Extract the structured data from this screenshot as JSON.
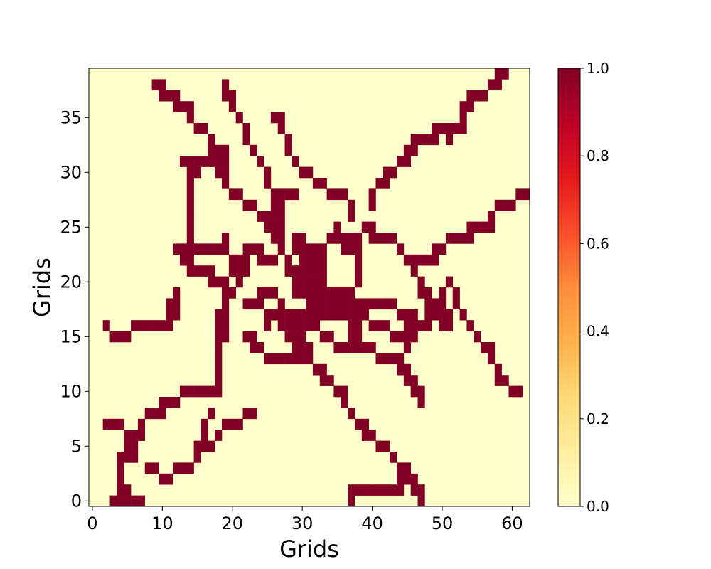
{
  "chart_data": {
    "type": "heatmap",
    "xlabel": "Grids",
    "ylabel": "Grids",
    "xlim": [
      -0.5,
      62.5
    ],
    "ylim": [
      -0.5,
      39.5
    ],
    "xticks": [
      "0",
      "10",
      "20",
      "30",
      "40",
      "50",
      "60"
    ],
    "yticks": [
      "0",
      "5",
      "10",
      "15",
      "20",
      "25",
      "30",
      "35"
    ],
    "colormap": "YlOrRd",
    "colorbar": {
      "min": 0.0,
      "max": 1.0,
      "ticks": [
        "0.0",
        "0.2",
        "0.4",
        "0.6",
        "0.8",
        "1.0"
      ]
    },
    "colors": {
      "low": "#ffffcc",
      "high": "#800026"
    },
    "cell_value_default": 0,
    "cell_value_marked": 1,
    "cells_value_1": [
      [
        3,
        0
      ],
      [
        4,
        0
      ],
      [
        5,
        0
      ],
      [
        6,
        0
      ],
      [
        7,
        0
      ],
      [
        4,
        1
      ],
      [
        5,
        1
      ],
      [
        4,
        2
      ],
      [
        4,
        3
      ],
      [
        4,
        4
      ],
      [
        5,
        4
      ],
      [
        6,
        4
      ],
      [
        5,
        5
      ],
      [
        6,
        5
      ],
      [
        5,
        6
      ],
      [
        6,
        6
      ],
      [
        7,
        6
      ],
      [
        2,
        7
      ],
      [
        3,
        7
      ],
      [
        4,
        7
      ],
      [
        7,
        7
      ],
      [
        8,
        3
      ],
      [
        9,
        3
      ],
      [
        10,
        2
      ],
      [
        11,
        2
      ],
      [
        12,
        3
      ],
      [
        13,
        3
      ],
      [
        14,
        3
      ],
      [
        15,
        4
      ],
      [
        15,
        5
      ],
      [
        16,
        5
      ],
      [
        17,
        5
      ],
      [
        16,
        6
      ],
      [
        16,
        7
      ],
      [
        17,
        8
      ],
      [
        18,
        6
      ],
      [
        19,
        7
      ],
      [
        20,
        7
      ],
      [
        21,
        7
      ],
      [
        22,
        8
      ],
      [
        23,
        8
      ],
      [
        8,
        8
      ],
      [
        9,
        8
      ],
      [
        10,
        8
      ],
      [
        10,
        9
      ],
      [
        11,
        9
      ],
      [
        12,
        9
      ],
      [
        13,
        10
      ],
      [
        14,
        10
      ],
      [
        15,
        10
      ],
      [
        16,
        10
      ],
      [
        17,
        10
      ],
      [
        18,
        10
      ],
      [
        18,
        11
      ],
      [
        18,
        12
      ],
      [
        18,
        13
      ],
      [
        18,
        14
      ],
      [
        18,
        15
      ],
      [
        18,
        16
      ],
      [
        18,
        17
      ],
      [
        19,
        15
      ],
      [
        19,
        16
      ],
      [
        19,
        17
      ],
      [
        19,
        18
      ],
      [
        2,
        16
      ],
      [
        3,
        15
      ],
      [
        4,
        15
      ],
      [
        5,
        15
      ],
      [
        6,
        16
      ],
      [
        7,
        16
      ],
      [
        8,
        16
      ],
      [
        9,
        16
      ],
      [
        10,
        16
      ],
      [
        11,
        16
      ],
      [
        11,
        17
      ],
      [
        11,
        18
      ],
      [
        12,
        17
      ],
      [
        12,
        18
      ],
      [
        12,
        19
      ],
      [
        12,
        23
      ],
      [
        13,
        23
      ],
      [
        13,
        22
      ],
      [
        14,
        22
      ],
      [
        14,
        21
      ],
      [
        15,
        21
      ],
      [
        16,
        21
      ],
      [
        17,
        20
      ],
      [
        17,
        21
      ],
      [
        18,
        20
      ],
      [
        19,
        20
      ],
      [
        19,
        19
      ],
      [
        20,
        19
      ],
      [
        20,
        21
      ],
      [
        20,
        22
      ],
      [
        21,
        21
      ],
      [
        21,
        22
      ],
      [
        21,
        20
      ],
      [
        22,
        21
      ],
      [
        22,
        22
      ],
      [
        22,
        23
      ],
      [
        23,
        23
      ],
      [
        24,
        23
      ],
      [
        24,
        22
      ],
      [
        25,
        22
      ],
      [
        26,
        22
      ],
      [
        14,
        23
      ],
      [
        15,
        23
      ],
      [
        16,
        23
      ],
      [
        17,
        23
      ],
      [
        18,
        23
      ],
      [
        19,
        23
      ],
      [
        19,
        24
      ],
      [
        14,
        24
      ],
      [
        14,
        25
      ],
      [
        14,
        26
      ],
      [
        14,
        27
      ],
      [
        14,
        28
      ],
      [
        14,
        29
      ],
      [
        14,
        30
      ],
      [
        13,
        31
      ],
      [
        14,
        31
      ],
      [
        15,
        30
      ],
      [
        15,
        31
      ],
      [
        16,
        31
      ],
      [
        17,
        31
      ],
      [
        18,
        31
      ],
      [
        18,
        30
      ],
      [
        19,
        30
      ],
      [
        19,
        31
      ],
      [
        19,
        29
      ],
      [
        20,
        28
      ],
      [
        21,
        28
      ],
      [
        22,
        27
      ],
      [
        23,
        27
      ],
      [
        9,
        38
      ],
      [
        10,
        38
      ],
      [
        10,
        37
      ],
      [
        11,
        37
      ],
      [
        12,
        37
      ],
      [
        12,
        36
      ],
      [
        13,
        36
      ],
      [
        14,
        36
      ],
      [
        14,
        35
      ],
      [
        15,
        34
      ],
      [
        16,
        34
      ],
      [
        17,
        33
      ],
      [
        17,
        32
      ],
      [
        18,
        32
      ],
      [
        19,
        32
      ],
      [
        19,
        38
      ],
      [
        19,
        37
      ],
      [
        20,
        37
      ],
      [
        20,
        36
      ],
      [
        21,
        35
      ],
      [
        22,
        34
      ],
      [
        22,
        33
      ],
      [
        23,
        32
      ],
      [
        24,
        31
      ],
      [
        25,
        30
      ],
      [
        25,
        29
      ],
      [
        26,
        28
      ],
      [
        27,
        28
      ],
      [
        28,
        28
      ],
      [
        29,
        28
      ],
      [
        26,
        27
      ],
      [
        27,
        27
      ],
      [
        24,
        26
      ],
      [
        25,
        26
      ],
      [
        26,
        26
      ],
      [
        27,
        26
      ],
      [
        25,
        25
      ],
      [
        26,
        25
      ],
      [
        27,
        25
      ],
      [
        26,
        24
      ],
      [
        27,
        24
      ],
      [
        27,
        23
      ],
      [
        26,
        35
      ],
      [
        27,
        35
      ],
      [
        27,
        34
      ],
      [
        28,
        33
      ],
      [
        28,
        32
      ],
      [
        29,
        31
      ],
      [
        30,
        30
      ],
      [
        31,
        30
      ],
      [
        32,
        29
      ],
      [
        33,
        29
      ],
      [
        34,
        28
      ],
      [
        35,
        28
      ],
      [
        36,
        28
      ],
      [
        37,
        27
      ],
      [
        37,
        26
      ],
      [
        29,
        24
      ],
      [
        30,
        24
      ],
      [
        30,
        23
      ],
      [
        29,
        23
      ],
      [
        28,
        22
      ],
      [
        28,
        21
      ],
      [
        29,
        21
      ],
      [
        30,
        21
      ],
      [
        31,
        21
      ],
      [
        32,
        21
      ],
      [
        33,
        21
      ],
      [
        30,
        22
      ],
      [
        31,
        22
      ],
      [
        32,
        22
      ],
      [
        33,
        22
      ],
      [
        31,
        23
      ],
      [
        32,
        23
      ],
      [
        33,
        23
      ],
      [
        29,
        20
      ],
      [
        30,
        20
      ],
      [
        31,
        20
      ],
      [
        32,
        20
      ],
      [
        33,
        20
      ],
      [
        31,
        19
      ],
      [
        32,
        19
      ],
      [
        33,
        19
      ],
      [
        34,
        19
      ],
      [
        30,
        19
      ],
      [
        29,
        19
      ],
      [
        31,
        18
      ],
      [
        32,
        18
      ],
      [
        33,
        18
      ],
      [
        34,
        18
      ],
      [
        35,
        18
      ],
      [
        31,
        17
      ],
      [
        32,
        17
      ],
      [
        33,
        17
      ],
      [
        34,
        17
      ],
      [
        35,
        17
      ],
      [
        36,
        17
      ],
      [
        37,
        17
      ],
      [
        36,
        18
      ],
      [
        37,
        18
      ],
      [
        38,
        18
      ],
      [
        35,
        19
      ],
      [
        36,
        19
      ],
      [
        37,
        19
      ],
      [
        38,
        20
      ],
      [
        38,
        21
      ],
      [
        38,
        22
      ],
      [
        37,
        23
      ],
      [
        36,
        23
      ],
      [
        35,
        24
      ],
      [
        34,
        24
      ],
      [
        35,
        25
      ],
      [
        36,
        24
      ],
      [
        37,
        24
      ],
      [
        38,
        24
      ],
      [
        38,
        23
      ],
      [
        39,
        25
      ],
      [
        40,
        25
      ],
      [
        40,
        24
      ],
      [
        41,
        24
      ],
      [
        42,
        24
      ],
      [
        43,
        24
      ],
      [
        44,
        23
      ],
      [
        45,
        22
      ],
      [
        46,
        22
      ],
      [
        46,
        21
      ],
      [
        47,
        20
      ],
      [
        47,
        19
      ],
      [
        48,
        19
      ],
      [
        48,
        18
      ],
      [
        39,
        18
      ],
      [
        40,
        18
      ],
      [
        41,
        18
      ],
      [
        42,
        18
      ],
      [
        43,
        18
      ],
      [
        44,
        17
      ],
      [
        45,
        17
      ],
      [
        46,
        17
      ],
      [
        46,
        16
      ],
      [
        46,
        15
      ],
      [
        45,
        14
      ],
      [
        44,
        13
      ],
      [
        43,
        13
      ],
      [
        42,
        13
      ],
      [
        41,
        13
      ],
      [
        40,
        14
      ],
      [
        39,
        14
      ],
      [
        38,
        14
      ],
      [
        37,
        14
      ],
      [
        36,
        14
      ],
      [
        35,
        14
      ],
      [
        34,
        15
      ],
      [
        33,
        15
      ],
      [
        32,
        16
      ],
      [
        31,
        16
      ],
      [
        30,
        16
      ],
      [
        29,
        16
      ],
      [
        28,
        16
      ],
      [
        27,
        16
      ],
      [
        25,
        16
      ],
      [
        25,
        17
      ],
      [
        26,
        17
      ],
      [
        27,
        17
      ],
      [
        28,
        17
      ],
      [
        29,
        17
      ],
      [
        30,
        17
      ],
      [
        27,
        18
      ],
      [
        26,
        19
      ],
      [
        25,
        19
      ],
      [
        24,
        19
      ],
      [
        24,
        18
      ],
      [
        23,
        18
      ],
      [
        22,
        18
      ],
      [
        28,
        15
      ],
      [
        29,
        15
      ],
      [
        30,
        15
      ],
      [
        29,
        14
      ],
      [
        30,
        14
      ],
      [
        31,
        14
      ],
      [
        31,
        13
      ],
      [
        30,
        13
      ],
      [
        29,
        13
      ],
      [
        28,
        13
      ],
      [
        27,
        13
      ],
      [
        26,
        13
      ],
      [
        25,
        13
      ],
      [
        24,
        14
      ],
      [
        23,
        14
      ],
      [
        22,
        15
      ],
      [
        23,
        15
      ],
      [
        32,
        12
      ],
      [
        33,
        12
      ],
      [
        33,
        11
      ],
      [
        34,
        11
      ],
      [
        35,
        10
      ],
      [
        36,
        10
      ],
      [
        36,
        9
      ],
      [
        37,
        8
      ],
      [
        38,
        7
      ],
      [
        39,
        7
      ],
      [
        39,
        6
      ],
      [
        40,
        6
      ],
      [
        41,
        5
      ],
      [
        42,
        5
      ],
      [
        43,
        4
      ],
      [
        44,
        3
      ],
      [
        45,
        3
      ],
      [
        45,
        2
      ],
      [
        46,
        2
      ],
      [
        46,
        1
      ],
      [
        47,
        1
      ],
      [
        47,
        0
      ],
      [
        44,
        2
      ],
      [
        44,
        1
      ],
      [
        43,
        1
      ],
      [
        42,
        1
      ],
      [
        41,
        1
      ],
      [
        40,
        1
      ],
      [
        39,
        1
      ],
      [
        38,
        1
      ],
      [
        37,
        1
      ],
      [
        37,
        0
      ],
      [
        37,
        16
      ],
      [
        37,
        15
      ],
      [
        38,
        15
      ],
      [
        38,
        16
      ],
      [
        38,
        17
      ],
      [
        39,
        17
      ],
      [
        40,
        16
      ],
      [
        41,
        16
      ],
      [
        42,
        16
      ],
      [
        43,
        15
      ],
      [
        44,
        15
      ],
      [
        45,
        15
      ],
      [
        45,
        16
      ],
      [
        44,
        12
      ],
      [
        45,
        12
      ],
      [
        45,
        11
      ],
      [
        46,
        11
      ],
      [
        46,
        10
      ],
      [
        47,
        10
      ],
      [
        47,
        9
      ],
      [
        47,
        16
      ],
      [
        48,
        16
      ],
      [
        48,
        17
      ],
      [
        49,
        17
      ],
      [
        49,
        18
      ],
      [
        50,
        18
      ],
      [
        50,
        17
      ],
      [
        50,
        16
      ],
      [
        51,
        16
      ],
      [
        51,
        17
      ],
      [
        50,
        19
      ],
      [
        51,
        20
      ],
      [
        52,
        19
      ],
      [
        52,
        18
      ],
      [
        53,
        17
      ],
      [
        54,
        16
      ],
      [
        55,
        15
      ],
      [
        56,
        14
      ],
      [
        57,
        14
      ],
      [
        57,
        13
      ],
      [
        58,
        12
      ],
      [
        58,
        11
      ],
      [
        59,
        11
      ],
      [
        60,
        10
      ],
      [
        61,
        10
      ],
      [
        47,
        22
      ],
      [
        48,
        22
      ],
      [
        49,
        22
      ],
      [
        49,
        23
      ],
      [
        50,
        23
      ],
      [
        51,
        24
      ],
      [
        52,
        24
      ],
      [
        53,
        24
      ],
      [
        54,
        24
      ],
      [
        54,
        25
      ],
      [
        55,
        25
      ],
      [
        56,
        25
      ],
      [
        57,
        25
      ],
      [
        57,
        26
      ],
      [
        58,
        27
      ],
      [
        59,
        27
      ],
      [
        60,
        27
      ],
      [
        61,
        28
      ],
      [
        62,
        28
      ],
      [
        44,
        31
      ],
      [
        45,
        31
      ],
      [
        45,
        32
      ],
      [
        46,
        32
      ],
      [
        46,
        33
      ],
      [
        47,
        33
      ],
      [
        48,
        33
      ],
      [
        49,
        33
      ],
      [
        49,
        34
      ],
      [
        50,
        34
      ],
      [
        51,
        34
      ],
      [
        51,
        33
      ],
      [
        52,
        34
      ],
      [
        53,
        34
      ],
      [
        53,
        35
      ],
      [
        53,
        36
      ],
      [
        54,
        36
      ],
      [
        54,
        37
      ],
      [
        55,
        37
      ],
      [
        56,
        37
      ],
      [
        57,
        38
      ],
      [
        58,
        38
      ],
      [
        58,
        39
      ],
      [
        59,
        39
      ],
      [
        43,
        30
      ],
      [
        42,
        30
      ],
      [
        42,
        29
      ],
      [
        41,
        29
      ],
      [
        40,
        28
      ],
      [
        40,
        27
      ]
    ]
  }
}
